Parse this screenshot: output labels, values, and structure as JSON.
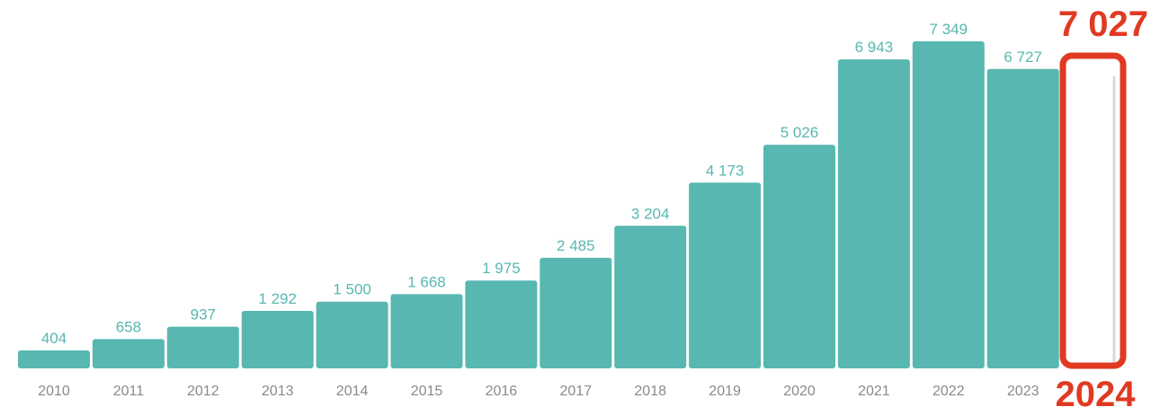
{
  "chart_data": {
    "type": "bar",
    "categories": [
      "2010",
      "2011",
      "2012",
      "2013",
      "2014",
      "2015",
      "2016",
      "2017",
      "2018",
      "2019",
      "2020",
      "2021",
      "2022",
      "2023"
    ],
    "values": [
      404,
      658,
      937,
      1292,
      1500,
      1668,
      1975,
      2485,
      3204,
      4173,
      5026,
      6943,
      7349,
      6727
    ],
    "value_labels": [
      "404",
      "658",
      "937",
      "1 292",
      "1 500",
      "1 668",
      "1 975",
      "2 485",
      "3 204",
      "4 173",
      "5 026",
      "6 943",
      "7 349",
      "6 727"
    ],
    "title": "",
    "xlabel": "",
    "ylabel": "",
    "ylim": [
      0,
      7349
    ],
    "grid": false,
    "legend": "none",
    "highlight": {
      "category": "2024",
      "value": 7027,
      "value_label": "7 027",
      "style": "outlined empty bar"
    },
    "colors": {
      "bar": "#58b7b1",
      "value_label": "#58b7b1",
      "tick_label": "#8a8a8a",
      "highlight": "#e03a22"
    }
  }
}
